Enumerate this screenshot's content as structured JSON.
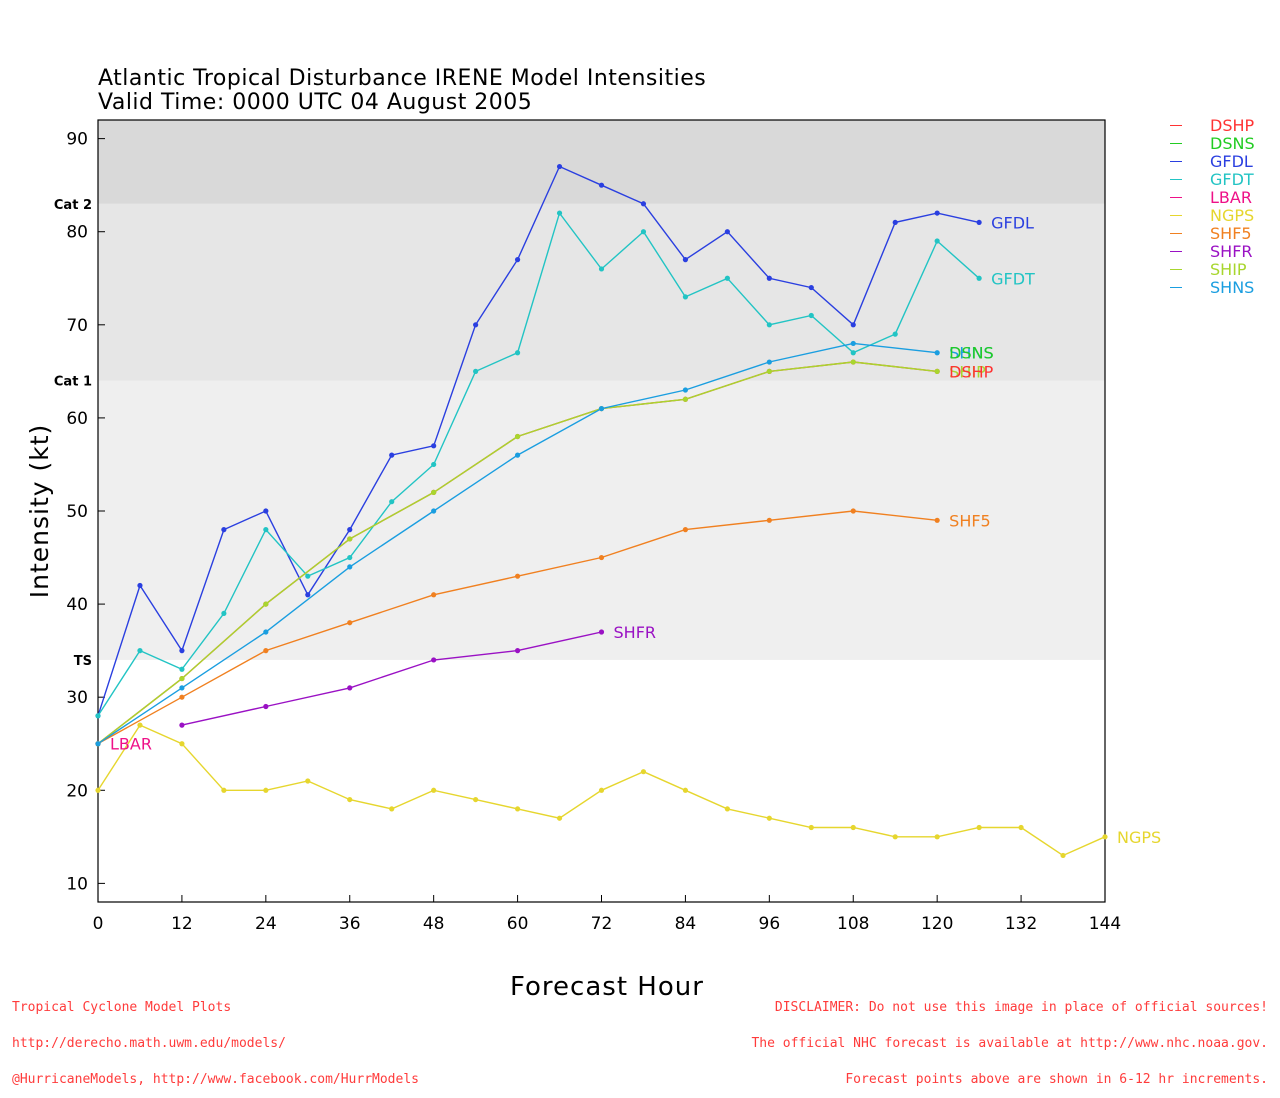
{
  "title_line1": "Atlantic Tropical Disturbance IRENE Model Intensities",
  "title_line2": "Valid Time: 0000 UTC 04 August 2005",
  "footer_left": [
    "Tropical Cyclone Model Plots",
    "http://derecho.math.uwm.edu/models/",
    "@HurricaneModels, http://www.facebook.com/HurrModels"
  ],
  "footer_right": [
    "DISCLAIMER: Do not use this image in place of official sources!",
    "The official NHC forecast is available at http://www.nhc.noaa.gov.",
    "Forecast points above are shown in 6-12 hr increments."
  ],
  "chart_data": {
    "type": "line",
    "xlabel": "Forecast Hour",
    "ylabel": "Intensity (kt)",
    "xlim": [
      0,
      144
    ],
    "ylim": [
      8,
      92
    ],
    "xticks": [
      0,
      12,
      24,
      36,
      48,
      60,
      72,
      84,
      96,
      108,
      120,
      132,
      144
    ],
    "yticks": [
      10,
      20,
      30,
      40,
      50,
      60,
      70,
      80,
      90
    ],
    "bands": [
      {
        "label": "TS",
        "from": 34,
        "to": 64,
        "color": "#efefef"
      },
      {
        "label": "Cat 1",
        "from": 64,
        "to": 83,
        "color": "#e6e6e6"
      },
      {
        "label": "Cat 2",
        "from": 83,
        "to": 92,
        "color": "#d9d9d9"
      }
    ],
    "legend_position": "right",
    "series": [
      {
        "name": "DSHP",
        "color": "#ff3333",
        "x": [
          0,
          12,
          24,
          36,
          48,
          60,
          72,
          84,
          96,
          108,
          120
        ],
        "values": [
          25,
          32,
          40,
          47,
          52,
          58,
          61,
          62,
          65,
          66,
          65
        ]
      },
      {
        "name": "DSNS",
        "color": "#22cc22",
        "x": [],
        "values": []
      },
      {
        "name": "GFDL",
        "color": "#2a3fe0",
        "x": [
          0,
          6,
          12,
          18,
          24,
          30,
          36,
          42,
          48,
          54,
          60,
          66,
          72,
          78,
          84,
          90,
          96,
          102,
          108,
          114,
          120,
          126
        ],
        "values": [
          28,
          42,
          35,
          48,
          50,
          41,
          48,
          56,
          57,
          70,
          77,
          87,
          85,
          83,
          77,
          80,
          75,
          74,
          70,
          81,
          82,
          81
        ]
      },
      {
        "name": "GFDT",
        "color": "#22c4c4",
        "x": [
          0,
          6,
          12,
          18,
          24,
          30,
          36,
          42,
          48,
          54,
          60,
          66,
          72,
          78,
          84,
          90,
          96,
          102,
          108,
          114,
          120,
          126
        ],
        "values": [
          28,
          35,
          33,
          39,
          48,
          43,
          45,
          51,
          55,
          65,
          67,
          82,
          76,
          80,
          73,
          75,
          70,
          71,
          67,
          69,
          79,
          75
        ]
      },
      {
        "name": "LBAR",
        "color": "#ee1188",
        "x": [
          0
        ],
        "values": [
          25
        ]
      },
      {
        "name": "NGPS",
        "color": "#e6d62e",
        "x": [
          0,
          6,
          12,
          18,
          24,
          30,
          36,
          42,
          48,
          54,
          60,
          66,
          72,
          78,
          84,
          90,
          96,
          102,
          108,
          114,
          120,
          126,
          132,
          138,
          144
        ],
        "values": [
          20,
          27,
          25,
          20,
          20,
          21,
          19,
          18,
          20,
          19,
          18,
          17,
          20,
          22,
          20,
          18,
          17,
          16,
          16,
          15,
          15,
          16,
          16,
          13,
          15
        ]
      },
      {
        "name": "SHF5",
        "color": "#f08020",
        "x": [
          0,
          12,
          24,
          36,
          48,
          60,
          72,
          84,
          96,
          108,
          120
        ],
        "values": [
          25,
          30,
          35,
          38,
          41,
          43,
          45,
          48,
          49,
          50,
          49
        ]
      },
      {
        "name": "SHFR",
        "color": "#9a11c4",
        "x": [
          12,
          24,
          36,
          48,
          60,
          72
        ],
        "values": [
          27,
          29,
          31,
          34,
          35,
          37
        ]
      },
      {
        "name": "SHIP",
        "color": "#a8d62e",
        "x": [
          0,
          12,
          24,
          36,
          48,
          60,
          72,
          84,
          96,
          108,
          120
        ],
        "values": [
          25,
          32,
          40,
          47,
          52,
          58,
          61,
          62,
          65,
          66,
          65
        ]
      },
      {
        "name": "SHNS",
        "color": "#1a9ee0",
        "x": [
          0,
          12,
          24,
          36,
          48,
          60,
          72,
          84,
          96,
          108,
          120
        ],
        "values": [
          25,
          31,
          37,
          44,
          50,
          56,
          61,
          63,
          66,
          68,
          67
        ]
      }
    ],
    "end_labels": [
      {
        "text": "GFDL",
        "series": "GFDL"
      },
      {
        "text": "GFDT",
        "series": "GFDT"
      },
      {
        "text": "SHNS",
        "series": "SHNS"
      },
      {
        "text": "DSNS",
        "series": "DSNS"
      },
      {
        "text": "SHIP",
        "series": "SHIP"
      },
      {
        "text": "DSHP",
        "series": "DSHP"
      },
      {
        "text": "SHF5",
        "series": "SHF5"
      },
      {
        "text": "SHFR",
        "series": "SHFR"
      },
      {
        "text": "LBAR",
        "series": "LBAR"
      },
      {
        "text": "NGPS",
        "series": "NGPS"
      }
    ]
  }
}
